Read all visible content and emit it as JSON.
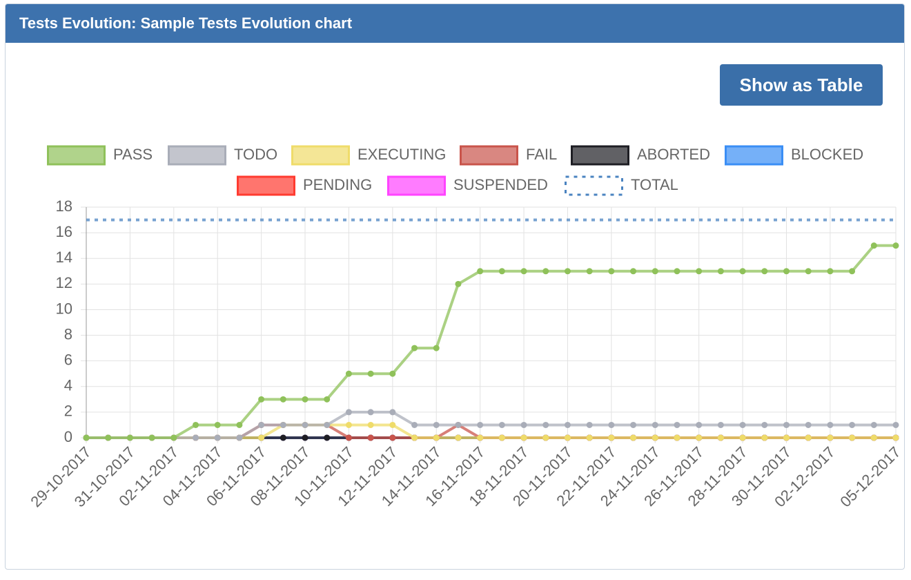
{
  "header": {
    "title": "Tests Evolution: Sample Tests Evolution chart"
  },
  "button": {
    "label": "Show as Table"
  },
  "chart_data": {
    "type": "line",
    "categories": [
      "29-10-2017",
      null,
      "31-10-2017",
      null,
      "02-11-2017",
      null,
      "04-11-2017",
      null,
      "06-11-2017",
      null,
      "08-11-2017",
      null,
      "10-11-2017",
      null,
      "12-11-2017",
      null,
      "14-11-2017",
      null,
      "16-11-2017",
      null,
      "18-11-2017",
      null,
      "20-11-2017",
      null,
      "22-11-2017",
      null,
      "24-11-2017",
      null,
      "26-11-2017",
      null,
      "28-11-2017",
      null,
      "30-11-2017",
      null,
      "02-12-2017",
      null,
      null,
      "05-12-2017"
    ],
    "ylim": [
      0,
      18
    ],
    "yticks": [
      0,
      2,
      4,
      6,
      8,
      10,
      12,
      14,
      16,
      18
    ],
    "grid": true,
    "series": [
      {
        "name": "PASS",
        "color": "#8fc15a",
        "values": [
          0,
          0,
          0,
          0,
          0,
          1,
          1,
          1,
          3,
          3,
          3,
          3,
          5,
          5,
          5,
          7,
          7,
          12,
          13,
          13,
          13,
          13,
          13,
          13,
          13,
          13,
          13,
          13,
          13,
          13,
          13,
          13,
          13,
          13,
          13,
          13,
          15,
          15
        ]
      },
      {
        "name": "TODO",
        "color": "#a9adb8",
        "values": [
          0,
          0,
          0,
          0,
          0,
          0,
          0,
          0,
          1,
          1,
          1,
          1,
          2,
          2,
          2,
          1,
          1,
          1,
          1,
          1,
          1,
          1,
          1,
          1,
          1,
          1,
          1,
          1,
          1,
          1,
          1,
          1,
          1,
          1,
          1,
          1,
          1,
          1
        ]
      },
      {
        "name": "EXECUTING",
        "color": "#efdc6a",
        "values": [
          0,
          0,
          0,
          0,
          0,
          0,
          0,
          0,
          0,
          1,
          1,
          1,
          1,
          1,
          1,
          0,
          0,
          0,
          0,
          0,
          0,
          0,
          0,
          0,
          0,
          0,
          0,
          0,
          0,
          0,
          0,
          0,
          0,
          0,
          0,
          0,
          0,
          0
        ]
      },
      {
        "name": "FAIL",
        "color": "#c9544b",
        "values": [
          0,
          0,
          0,
          0,
          0,
          0,
          0,
          0,
          1,
          1,
          1,
          1,
          0,
          0,
          0,
          0,
          0,
          1,
          0,
          0,
          0,
          0,
          0,
          0,
          0,
          0,
          0,
          0,
          0,
          0,
          0,
          0,
          0,
          0,
          0,
          0,
          0,
          0
        ]
      },
      {
        "name": "ABORTED",
        "color": "#1e1e24",
        "values": [
          0,
          0,
          0,
          0,
          0,
          0,
          0,
          0,
          0,
          0,
          0,
          0,
          0,
          0,
          0,
          0,
          0,
          0,
          0,
          0,
          0,
          0,
          0,
          0,
          0,
          0,
          0,
          0,
          0,
          0,
          0,
          0,
          0,
          0,
          0,
          0,
          0,
          0
        ]
      },
      {
        "name": "BLOCKED",
        "color": "#3a8ef5",
        "values": [
          0,
          0,
          0,
          0,
          0,
          0,
          0,
          0,
          0,
          0,
          0,
          0,
          0,
          0,
          0,
          0,
          0,
          0,
          0,
          0,
          0,
          0,
          0,
          0,
          0,
          0,
          0,
          0,
          0,
          0,
          0,
          0,
          0,
          0,
          0,
          0,
          0,
          0
        ]
      },
      {
        "name": "PENDING",
        "color": "#ff3b30",
        "values": [
          0,
          0,
          0,
          0,
          0,
          0,
          0,
          0,
          0,
          0,
          0,
          0,
          0,
          0,
          0,
          0,
          0,
          0,
          0,
          0,
          0,
          0,
          0,
          0,
          0,
          0,
          0,
          0,
          0,
          0,
          0,
          0,
          0,
          0,
          0,
          0,
          0,
          0
        ]
      },
      {
        "name": "SUSPENDED",
        "color": "#ff44ff",
        "values": [
          0,
          0,
          0,
          0,
          0,
          0,
          0,
          0,
          0,
          0,
          0,
          0,
          0,
          0,
          0,
          0,
          0,
          0,
          0,
          0,
          0,
          0,
          0,
          0,
          0,
          0,
          0,
          0,
          0,
          0,
          0,
          0,
          0,
          0,
          0,
          0,
          0,
          0
        ]
      },
      {
        "name": "TOTAL",
        "color": "#4a83c0",
        "dashed": true,
        "values": [
          17,
          17,
          17,
          17,
          17,
          17,
          17,
          17,
          17,
          17,
          17,
          17,
          17,
          17,
          17,
          17,
          17,
          17,
          17,
          17,
          17,
          17,
          17,
          17,
          17,
          17,
          17,
          17,
          17,
          17,
          17,
          17,
          17,
          17,
          17,
          17,
          17,
          17
        ]
      }
    ]
  }
}
